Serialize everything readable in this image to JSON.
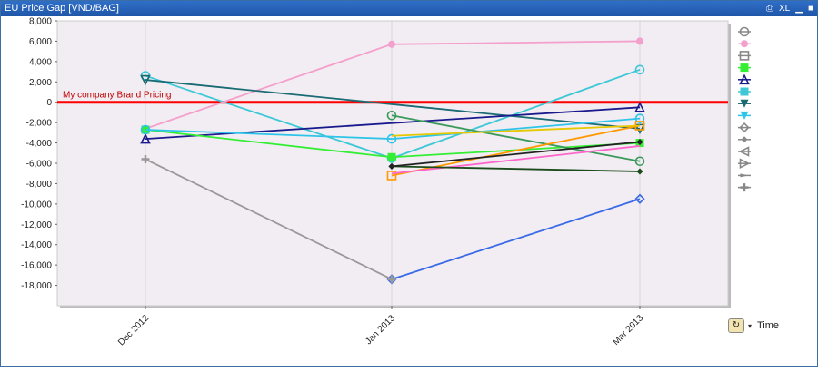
{
  "window": {
    "title": "EU Price Gap [VND/BAG]",
    "controls": [
      "print-icon",
      "xl",
      "minimize-icon",
      "maximize-icon"
    ],
    "xl_label": "XL"
  },
  "time_control": {
    "label": "Time",
    "icon": "time-axis-icon"
  },
  "chart_data": {
    "type": "line",
    "categories": [
      "Dec 2012",
      "Jan 2013",
      "Mar 2013"
    ],
    "ylim": [
      -20000,
      8000
    ],
    "yticks": [
      8000,
      6000,
      4000,
      2000,
      0,
      -2000,
      -4000,
      -6000,
      -8000,
      -10000,
      -12000,
      -14000,
      -16000,
      -18000
    ],
    "ytick_labels": [
      "8,000",
      "6,000",
      "4,000",
      "2,000",
      "0",
      "-2,000",
      "-4,000",
      "-6,000",
      "-8,000",
      "-10,000",
      "-12,000",
      "-14,000",
      "-16,000",
      "-18,000"
    ],
    "reference_line": {
      "value": 0,
      "label": "My company Brand Pricing",
      "color": "#ff0000"
    },
    "plot_background": "#f2edf3",
    "series": [
      {
        "color": "#3ec8d6",
        "marker": "circle-open",
        "values": [
          2600,
          -5500,
          3200
        ]
      },
      {
        "color": "#f4a0cc",
        "marker": "circle-filled",
        "values": [
          -2600,
          5700,
          6000
        ]
      },
      {
        "color": "#1a6b73",
        "marker": "triangle-down-open",
        "values": [
          2200,
          null,
          -2600
        ]
      },
      {
        "color": "#1a1a8c",
        "marker": "triangle-up-open",
        "values": [
          -3600,
          null,
          -500
        ]
      },
      {
        "color": "#33ee33",
        "marker": "square-filled",
        "values": [
          -2700,
          -5400,
          -4000
        ]
      },
      {
        "color": "#2ec4e8",
        "marker": "circle-open",
        "values": [
          -2700,
          -3600,
          -1600
        ]
      },
      {
        "color": "#3a9a5a",
        "marker": "circle-open",
        "values": [
          null,
          -1300,
          -5800
        ]
      },
      {
        "color": "#3a6ae6",
        "marker": "diamond-open",
        "values": [
          null,
          -17400,
          -9500
        ]
      },
      {
        "color": "#999999",
        "marker": "plus",
        "values": [
          -5600,
          -17400,
          null
        ]
      },
      {
        "color": "#ff9900",
        "marker": "square-open",
        "values": [
          null,
          -7200,
          -2300
        ]
      },
      {
        "color": "#ff66cc",
        "marker": "none",
        "values": [
          null,
          -7000,
          -4300
        ]
      },
      {
        "color": "#1b4a1b",
        "marker": "diamond-filled",
        "values": [
          null,
          -6300,
          -6800
        ]
      },
      {
        "color": "#222222",
        "marker": "diamond-filled",
        "values": [
          null,
          -6300,
          -3900
        ]
      },
      {
        "color": "#e6c800",
        "marker": "none",
        "values": [
          null,
          -3300,
          -2300
        ]
      }
    ],
    "legend_markers": [
      {
        "marker": "circle-open",
        "color": "#888888"
      },
      {
        "marker": "circle-filled",
        "color": "#f4a0cc"
      },
      {
        "marker": "square-open",
        "color": "#888888"
      },
      {
        "marker": "square-filled",
        "color": "#33ee33"
      },
      {
        "marker": "triangle-up-open",
        "color": "#1a1a8c"
      },
      {
        "marker": "square-filled",
        "color": "#3ec8d6"
      },
      {
        "marker": "triangle-down-filled",
        "color": "#1a6b73"
      },
      {
        "marker": "triangle-down-filled",
        "color": "#2ec4e8"
      },
      {
        "marker": "diamond-open",
        "color": "#888888"
      },
      {
        "marker": "diamond-filled",
        "color": "#888888"
      },
      {
        "marker": "triangle-left-open",
        "color": "#888888"
      },
      {
        "marker": "triangle-right-open",
        "color": "#888888"
      },
      {
        "marker": "arrow-right",
        "color": "#888888"
      },
      {
        "marker": "plus",
        "color": "#888888"
      }
    ]
  }
}
